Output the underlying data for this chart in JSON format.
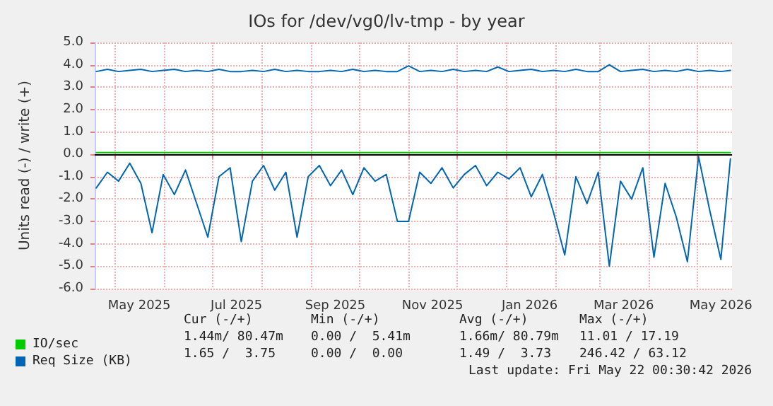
{
  "chart_data": {
    "type": "line",
    "title": "IOs for /dev/vg0/lv-tmp - by year",
    "ylabel": "Units read (-) / write (+)",
    "xlim": [
      "2025-04-18",
      "2026-05-23"
    ],
    "xticks": [
      {
        "value": "2025-05-01",
        "label": null
      },
      {
        "value": "2025-05-16",
        "label": "May 2025"
      },
      {
        "value": "2025-06-01",
        "label": null
      },
      {
        "value": "2025-07-01",
        "label": null
      },
      {
        "value": "2025-07-16",
        "label": "Jul 2025"
      },
      {
        "value": "2025-08-01",
        "label": null
      },
      {
        "value": "2025-09-01",
        "label": null
      },
      {
        "value": "2025-09-16",
        "label": "Sep 2025"
      },
      {
        "value": "2025-10-01",
        "label": null
      },
      {
        "value": "2025-11-01",
        "label": null
      },
      {
        "value": "2025-11-16",
        "label": "Nov 2025"
      },
      {
        "value": "2025-12-01",
        "label": null
      },
      {
        "value": "2026-01-01",
        "label": null
      },
      {
        "value": "2026-01-16",
        "label": "Jan 2026"
      },
      {
        "value": "2026-02-01",
        "label": null
      },
      {
        "value": "2026-03-01",
        "label": null
      },
      {
        "value": "2026-03-16",
        "label": "Mar 2026"
      },
      {
        "value": "2026-04-01",
        "label": null
      },
      {
        "value": "2026-05-01",
        "label": null
      },
      {
        "value": "2026-05-16",
        "label": "May 2026"
      }
    ],
    "ylim": [
      -6,
      5
    ],
    "yticks": [
      {
        "value": -6,
        "label": "-6.0"
      },
      {
        "value": -5,
        "label": "-5.0"
      },
      {
        "value": -4,
        "label": "-4.0"
      },
      {
        "value": -3,
        "label": "-3.0"
      },
      {
        "value": -2,
        "label": "-2.0"
      },
      {
        "value": -1,
        "label": "-1.0"
      },
      {
        "value": 0,
        "label": "0.0"
      },
      {
        "value": 1,
        "label": "1.0"
      },
      {
        "value": 2,
        "label": "2.0"
      },
      {
        "value": 3,
        "label": "3.0"
      },
      {
        "value": 4,
        "label": "4.0"
      },
      {
        "value": 5,
        "label": "5.0"
      }
    ],
    "grid": true,
    "legend": "bottom left",
    "marker": "none",
    "line_style": "solid",
    "x": [
      "2025-04-19",
      "2025-04-26",
      "2025-05-03",
      "2025-05-10",
      "2025-05-17",
      "2025-05-24",
      "2025-05-31",
      "2025-06-07",
      "2025-06-14",
      "2025-06-21",
      "2025-06-28",
      "2025-07-05",
      "2025-07-12",
      "2025-07-19",
      "2025-07-26",
      "2025-08-02",
      "2025-08-09",
      "2025-08-16",
      "2025-08-23",
      "2025-08-30",
      "2025-09-06",
      "2025-09-13",
      "2025-09-20",
      "2025-09-27",
      "2025-10-04",
      "2025-10-11",
      "2025-10-18",
      "2025-10-25",
      "2025-11-01",
      "2025-11-08",
      "2025-11-15",
      "2025-11-22",
      "2025-11-29",
      "2025-12-06",
      "2025-12-13",
      "2025-12-20",
      "2025-12-27",
      "2026-01-03",
      "2026-01-10",
      "2026-01-17",
      "2026-01-24",
      "2026-01-31",
      "2026-02-07",
      "2026-02-14",
      "2026-02-21",
      "2026-02-28",
      "2026-03-07",
      "2026-03-14",
      "2026-03-21",
      "2026-03-28",
      "2026-04-04",
      "2026-04-11",
      "2026-04-18",
      "2026-04-25",
      "2026-05-02",
      "2026-05-09",
      "2026-05-16",
      "2026-05-22"
    ],
    "series": [
      {
        "name": "IO/sec",
        "color": "#00cc00",
        "values": [
          0.08,
          0.08,
          0.08,
          0.08,
          0.08,
          0.08,
          0.08,
          0.08,
          0.08,
          0.08,
          0.08,
          0.08,
          0.08,
          0.08,
          0.08,
          0.08,
          0.08,
          0.08,
          0.08,
          0.08,
          0.08,
          0.08,
          0.08,
          0.08,
          0.08,
          0.08,
          0.08,
          0.08,
          0.08,
          0.08,
          0.08,
          0.08,
          0.08,
          0.08,
          0.08,
          0.08,
          0.08,
          0.08,
          0.08,
          0.08,
          0.08,
          0.08,
          0.08,
          0.08,
          0.08,
          0.08,
          0.08,
          0.08,
          0.08,
          0.08,
          0.08,
          0.08,
          0.08,
          0.08,
          0.08,
          0.08,
          0.08,
          0.08
        ]
      },
      {
        "name": "Req Size (KB)",
        "color": "#0066b3",
        "values": [
          3.7,
          3.8,
          3.7,
          3.75,
          3.8,
          3.7,
          3.75,
          3.8,
          3.7,
          3.75,
          3.7,
          3.8,
          3.7,
          3.7,
          3.75,
          3.7,
          3.8,
          3.7,
          3.75,
          3.7,
          3.7,
          3.75,
          3.7,
          3.8,
          3.7,
          3.75,
          3.7,
          3.7,
          3.95,
          3.7,
          3.75,
          3.7,
          3.8,
          3.7,
          3.75,
          3.7,
          3.9,
          3.7,
          3.75,
          3.8,
          3.7,
          3.75,
          3.7,
          3.8,
          3.7,
          3.7,
          4.0,
          3.7,
          3.75,
          3.8,
          3.7,
          3.75,
          3.7,
          3.8,
          3.7,
          3.75,
          3.7,
          3.75
        ]
      },
      {
        "color": "#0066b3",
        "values": [
          -1.5,
          -0.8,
          -1.2,
          -0.4,
          -1.3,
          -3.5,
          -0.9,
          -1.8,
          -0.7,
          -2.2,
          -3.7,
          -1.0,
          -0.6,
          -3.9,
          -1.2,
          -0.5,
          -1.6,
          -0.8,
          -3.7,
          -1.0,
          -0.5,
          -1.4,
          -0.7,
          -1.8,
          -0.6,
          -1.2,
          -0.9,
          -3.0,
          -3.0,
          -0.8,
          -1.3,
          -0.6,
          -1.5,
          -0.9,
          -0.5,
          -1.4,
          -0.8,
          -1.1,
          -0.6,
          -1.9,
          -0.9,
          -2.6,
          -4.5,
          -1.0,
          -2.2,
          -0.8,
          -5.0,
          -1.2,
          -2.0,
          -0.6,
          -4.6,
          -1.3,
          -2.8,
          -4.8,
          -0.1,
          -2.5,
          -4.7,
          -0.2
        ]
      }
    ],
    "annotations": [
      "Cur (-/+)",
      "Min (-/+)",
      "Avg (-/+)",
      "Max (-/+)",
      "1.44m/ 80.47m",
      "0.00 /  5.41m",
      "1.66m/ 80.79m",
      "11.01 / 17.19",
      "1.65 /  3.75",
      "0.00 /  0.00",
      "1.49 /  3.73",
      "246.42 / 63.12",
      "Last update: Fri May 22 00:30:42 2026"
    ]
  }
}
